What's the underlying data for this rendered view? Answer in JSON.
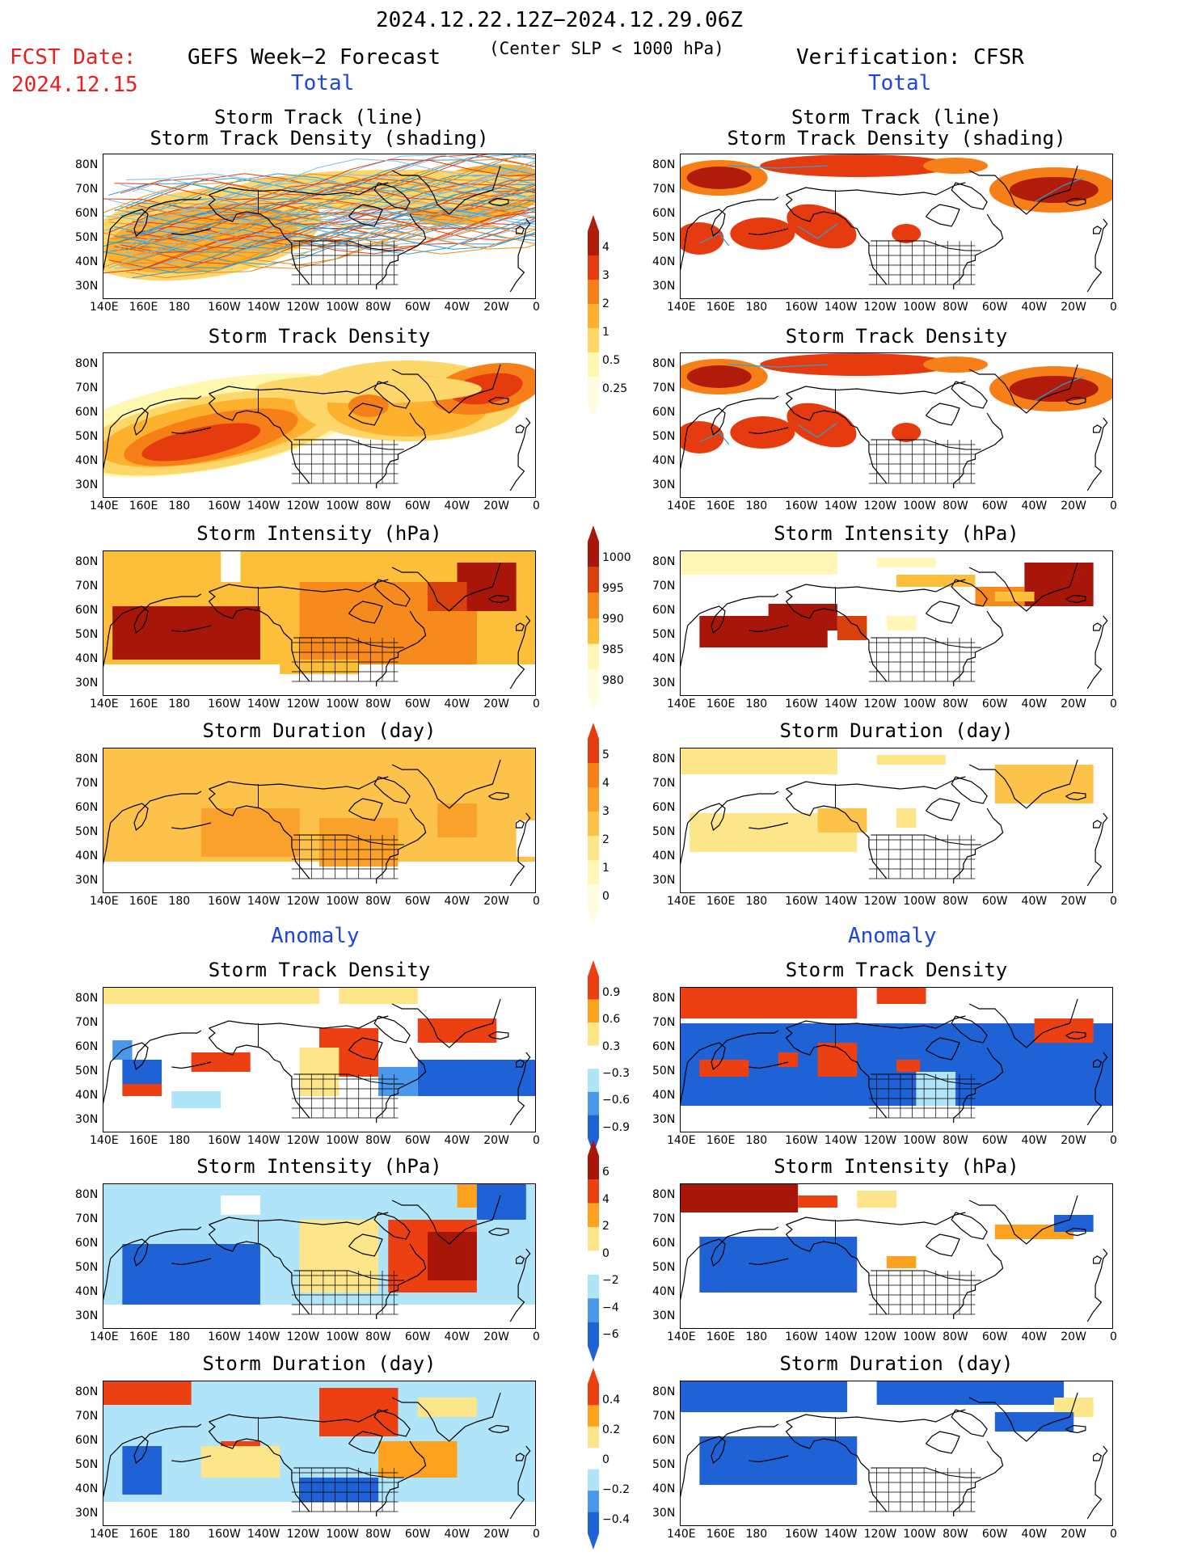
{
  "header": {
    "period": "2024.12.22.12Z−2024.12.29.06Z",
    "criterion": "(Center SLP < 1000 hPa)",
    "fcst_label": "FCST Date:",
    "fcst_date": "2024.12.15",
    "left_title": "GEFS Week−2 Forecast",
    "right_title": "Verification: CFSR",
    "total_label": "Total",
    "anomaly_label": "Anomaly"
  },
  "panel_titles": {
    "track": [
      "Storm Track (line)",
      "Storm Track Density (shading)"
    ],
    "density": "Storm Track Density",
    "intensity": "Storm Intensity (hPa)",
    "duration": "Storm Duration (day)"
  },
  "axes": {
    "lat_labels": [
      "80N",
      "70N",
      "60N",
      "50N",
      "40N",
      "30N"
    ],
    "lon_labels": [
      "140E",
      "160E",
      "180",
      "160W",
      "140W",
      "120W",
      "100W",
      "80W",
      "60W",
      "40W",
      "20W",
      "0"
    ]
  },
  "colorbars": {
    "total_density": [
      "4",
      "3",
      "2",
      "1",
      "0.5",
      "0.25"
    ],
    "total_intensity": [
      "1000",
      "995",
      "990",
      "985",
      "980"
    ],
    "total_duration": [
      "5",
      "4",
      "3",
      "2",
      "1",
      "0"
    ],
    "anom_density": [
      "0.9",
      "0.6",
      "0.3",
      "−0.3",
      "−0.6",
      "−0.9"
    ],
    "anom_intensity": [
      "6",
      "4",
      "2",
      "0",
      "−2",
      "−4",
      "−6"
    ],
    "anom_duration": [
      "0.4",
      "0.2",
      "0",
      "−0.2",
      "−0.4"
    ]
  },
  "colors": {
    "dens": [
      "#fff8b0",
      "#fdd76a",
      "#fdb12c",
      "#f67f17",
      "#e63b0e",
      "#b11b0a"
    ],
    "inten": [
      "#fff6b8",
      "#fdbe3a",
      "#f68a1c",
      "#d8400c",
      "#a8160a"
    ],
    "dur": [
      "#fff6b8",
      "#fde58a",
      "#fcc24a",
      "#f9a12a",
      "#f67f17",
      "#e23c10"
    ],
    "anom": [
      "#1f62d6",
      "#4a98ea",
      "#b0e4f8",
      "#ffffff",
      "#fde58a",
      "#fca21e",
      "#ec3f12"
    ],
    "track_line": "#2aa0dc"
  }
}
